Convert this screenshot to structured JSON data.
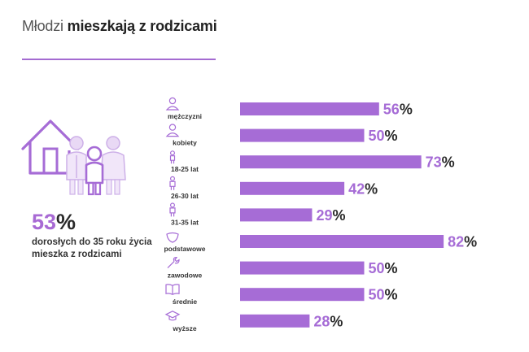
{
  "header": {
    "title_light": "Młodzi",
    "title_bold": "mieszkają z rodzicami"
  },
  "summary": {
    "value": "53",
    "unit": "%",
    "description": "dorosłych do 35 roku życia mieszka z rodzicami"
  },
  "colors": {
    "accent": "#a66cd6",
    "text": "#2a2a2a"
  },
  "icons": {
    "family": "house-family-icon",
    "categories": [
      "person-icon",
      "person-icon",
      "child-icon",
      "adult-icon",
      "adult-icon",
      "pacifier-icon",
      "wrench-icon",
      "book-icon",
      "graduation-cap-icon"
    ]
  },
  "chart_data": {
    "type": "bar",
    "orientation": "horizontal",
    "categories": [
      "mężczyzni",
      "kobiety",
      "18-25 lat",
      "26-30 lat",
      "31-35 lat",
      "podstawowe",
      "zawodowe",
      "średnie",
      "wyższe"
    ],
    "values": [
      56,
      50,
      73,
      42,
      29,
      82,
      50,
      50,
      28
    ],
    "value_suffix": "%",
    "xlim": [
      0,
      100
    ],
    "grid": false,
    "legend": "none"
  }
}
